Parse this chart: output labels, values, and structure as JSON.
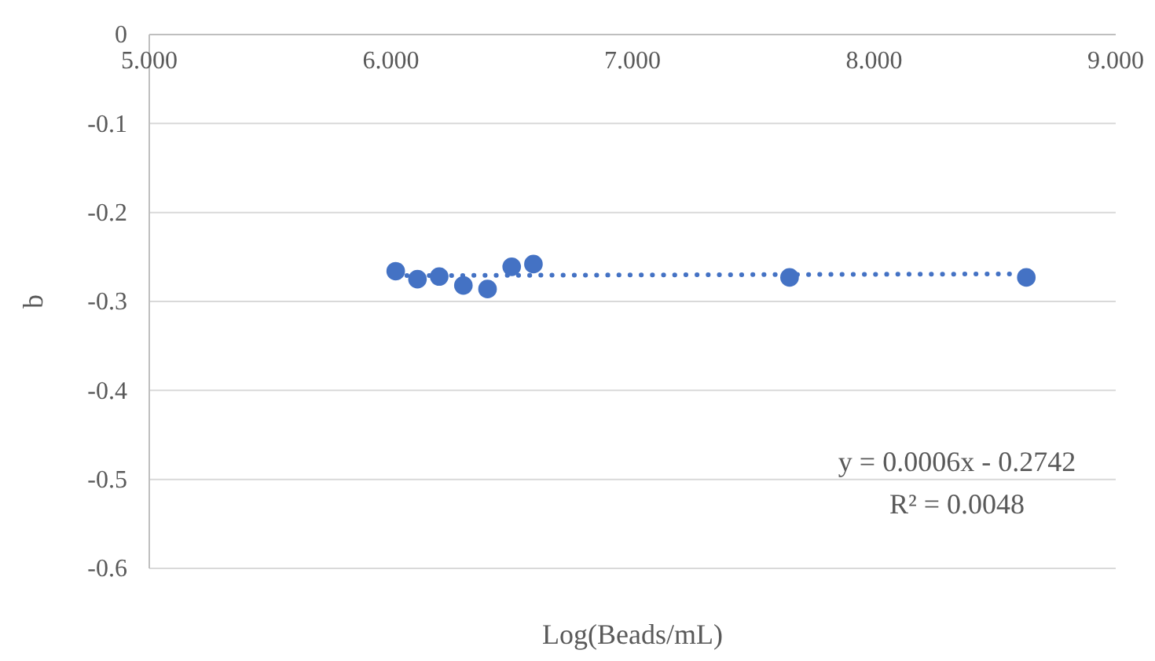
{
  "chart_data": {
    "type": "scatter",
    "xlabel": "Log(Beads/mL)",
    "ylabel": "b",
    "xlim": [
      5,
      9
    ],
    "xticks": [
      {
        "value": 5,
        "label": "5.000"
      },
      {
        "value": 6,
        "label": "6.000"
      },
      {
        "value": 7,
        "label": "7.000"
      },
      {
        "value": 8,
        "label": "8.000"
      },
      {
        "value": 9,
        "label": "9.000"
      }
    ],
    "ylim": [
      -0.6,
      0
    ],
    "yticks": [
      0,
      -0.1,
      -0.2,
      -0.3,
      -0.4,
      -0.5,
      -0.6
    ],
    "grid": "y",
    "series": [
      {
        "color": "#4472c4",
        "marker": "circle",
        "x": [
          6.02,
          6.11,
          6.2,
          6.3,
          6.4,
          6.5,
          6.59,
          7.65,
          8.63
        ],
        "values": [
          -0.266,
          -0.275,
          -0.272,
          -0.282,
          -0.286,
          -0.261,
          -0.258,
          -0.273,
          -0.273
        ]
      },
      {
        "type": "line",
        "color": "#4472c4",
        "line_style": "dotted",
        "marker": "none",
        "x": [
          6.02,
          8.63
        ],
        "values": [
          -0.271,
          -0.269
        ]
      }
    ],
    "annotations": [
      "y = 0.0006x - 0.2742",
      "R² = 0.0048"
    ]
  }
}
